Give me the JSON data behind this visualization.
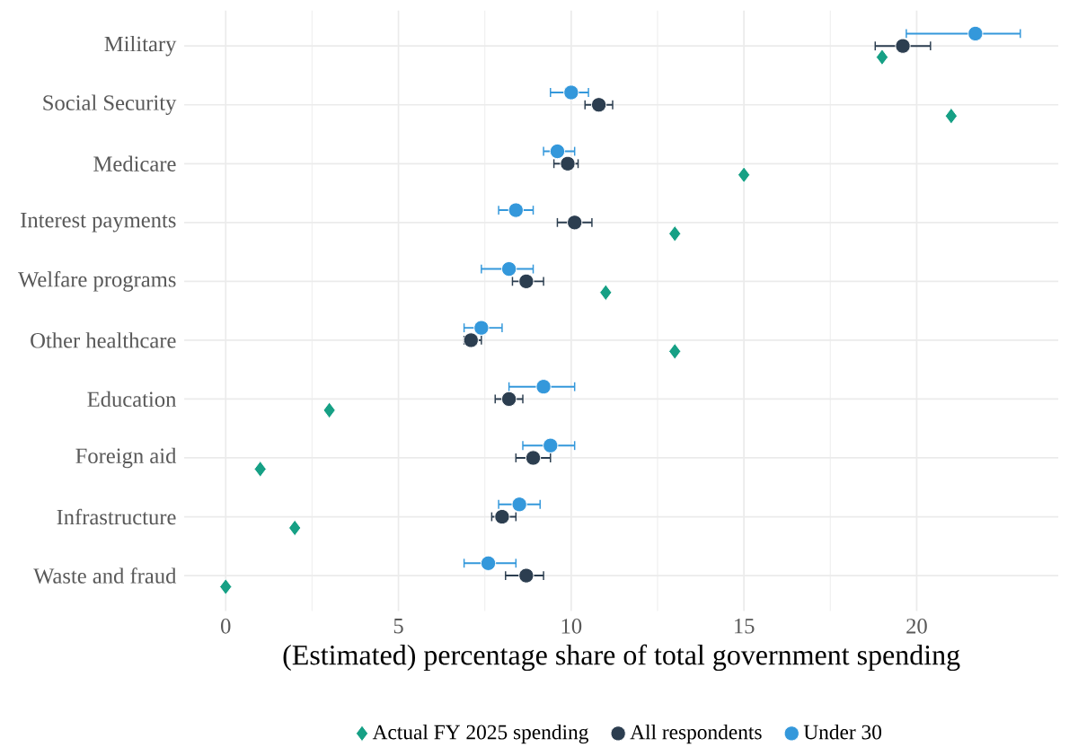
{
  "chart_data": {
    "type": "scatter",
    "orientation": "horizontal",
    "xlabel": "(Estimated) percentage share of total government spending",
    "categories": [
      "Military",
      "Social Security",
      "Medicare",
      "Interest payments",
      "Welfare programs",
      "Other healthcare",
      "Education",
      "Foreign aid",
      "Infrastructure",
      "Waste and fraud"
    ],
    "series": [
      {
        "name": "Actual FY 2025 spending",
        "color": "#16a085",
        "marker": "diamond",
        "values": [
          19,
          21,
          15,
          13,
          11,
          13,
          3,
          1,
          2,
          0
        ]
      },
      {
        "name": "All respondents",
        "color": "#2c3e50",
        "marker": "circle",
        "values": [
          19.6,
          10.8,
          9.9,
          10.1,
          8.7,
          7.1,
          8.2,
          8.9,
          8.0,
          8.7
        ],
        "errors": [
          [
            18.8,
            20.4
          ],
          [
            10.4,
            11.2
          ],
          [
            9.5,
            10.2
          ],
          [
            9.6,
            10.6
          ],
          [
            8.3,
            9.2
          ],
          [
            6.9,
            7.4
          ],
          [
            7.8,
            8.6
          ],
          [
            8.4,
            9.4
          ],
          [
            7.7,
            8.4
          ],
          [
            8.1,
            9.2
          ]
        ]
      },
      {
        "name": "Under 30",
        "color": "#3498db",
        "marker": "circle",
        "values": [
          21.7,
          10.0,
          9.6,
          8.4,
          8.2,
          7.4,
          9.2,
          9.4,
          8.5,
          7.6
        ],
        "errors": [
          [
            19.7,
            23.0
          ],
          [
            9.4,
            10.5
          ],
          [
            9.2,
            10.1
          ],
          [
            7.9,
            8.9
          ],
          [
            7.4,
            8.9
          ],
          [
            6.9,
            8.0
          ],
          [
            8.2,
            10.1
          ],
          [
            8.6,
            10.1
          ],
          [
            7.9,
            9.1
          ],
          [
            6.9,
            8.4
          ]
        ]
      }
    ],
    "xlim": [
      -1.2,
      24.1
    ],
    "xticks": [
      0,
      5,
      10,
      15,
      20
    ],
    "grid": true,
    "legend": "bottom"
  }
}
